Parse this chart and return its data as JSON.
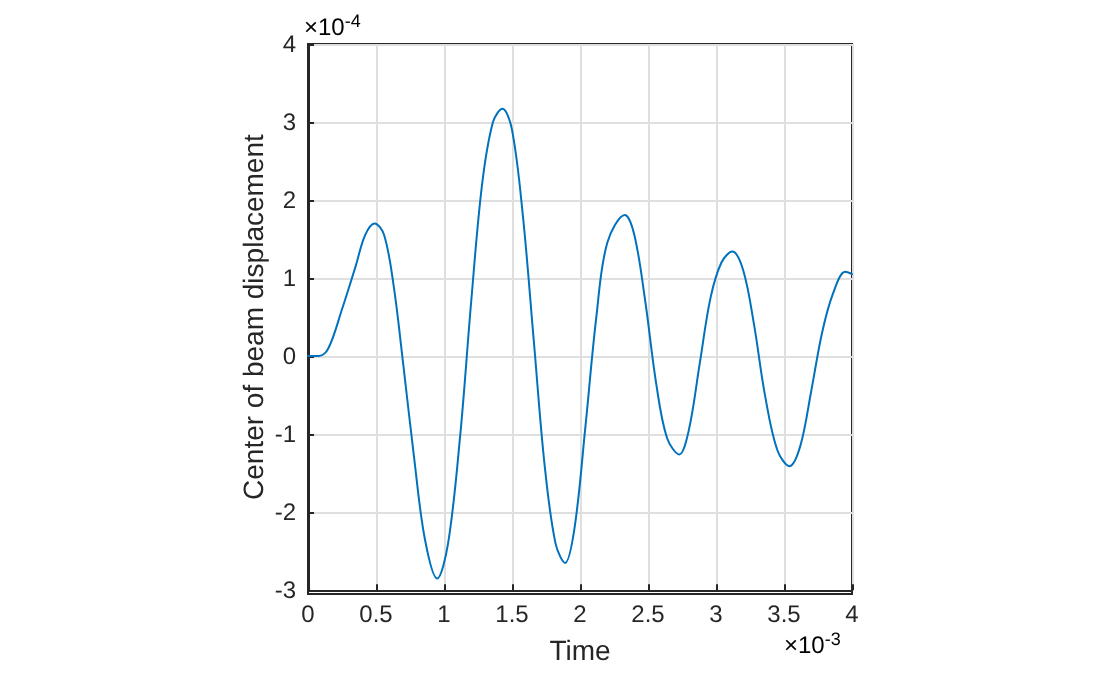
{
  "chart_data": {
    "type": "line",
    "xlabel": "Time",
    "ylabel": "Center of beam displacement",
    "annotations": [
      "×10$^{-4}$",
      "×10$^{-3}$"
    ],
    "x": [
      0,
      0.08,
      0.15,
      0.25,
      0.35,
      0.42,
      0.49,
      0.56,
      0.63,
      0.7,
      0.78,
      0.86,
      0.95,
      1.03,
      1.12,
      1.2,
      1.28,
      1.36,
      1.43,
      1.5,
      1.58,
      1.66,
      1.74,
      1.82,
      1.89,
      1.96,
      2.04,
      2.12,
      2.2,
      2.33,
      2.4,
      2.48,
      2.56,
      2.64,
      2.73,
      2.8,
      2.88,
      2.96,
      3.04,
      3.12,
      3.2,
      3.28,
      3.36,
      3.45,
      3.54,
      3.62,
      3.7,
      3.78,
      3.86,
      3.95,
      4
    ],
    "series": [
      {
        "color": "#0072bd",
        "values": [
          0,
          0,
          0.1,
          0.6,
          1.15,
          1.55,
          1.7,
          1.55,
          0.9,
          -0.1,
          -1.3,
          -2.35,
          -2.85,
          -2.4,
          -1,
          0.7,
          2.2,
          3,
          3.17,
          2.9,
          1.8,
          0.2,
          -1.4,
          -2.4,
          -2.65,
          -2.2,
          -0.9,
          0.5,
          1.45,
          1.81,
          1.55,
          0.7,
          -0.35,
          -1.05,
          -1.26,
          -0.95,
          -0.1,
          0.75,
          1.2,
          1.34,
          1.1,
          0.4,
          -0.5,
          -1.2,
          -1.41,
          -1.15,
          -0.45,
          0.3,
          0.8,
          1.08,
          1.05
        ]
      }
    ],
    "xlim": [
      0,
      4
    ],
    "xticks": [
      0,
      0.5,
      1,
      1.5,
      2,
      2.5,
      3,
      3.5,
      4
    ],
    "ylim": [
      -3,
      4
    ],
    "yticks": [
      -3,
      -2,
      -1,
      0,
      1,
      2,
      3,
      4
    ],
    "grid": true,
    "marker": "none",
    "line_style": "solid"
  }
}
